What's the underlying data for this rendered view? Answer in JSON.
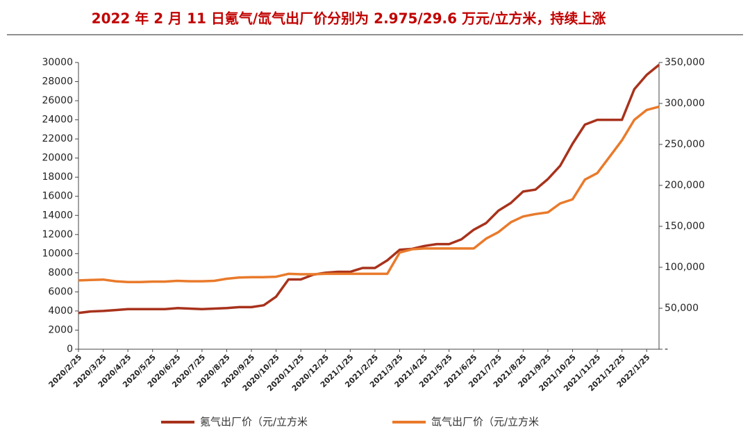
{
  "chart_data": {
    "type": "line",
    "title": "2022 年 2 月 11 日氪气/氙气出厂价分别为 2.975/29.6 万元/立方米，持续上涨",
    "categories": [
      "2020/2/25",
      null,
      "2020/3/25",
      null,
      "2020/4/25",
      null,
      "2020/5/25",
      null,
      "2020/6/25",
      null,
      "2020/7/25",
      null,
      "2020/8/25",
      null,
      "2020/9/25",
      null,
      "2020/10/25",
      null,
      "2020/11/25",
      null,
      "2020/12/25",
      null,
      "2021/1/25",
      null,
      "2021/2/25",
      null,
      "2021/3/25",
      null,
      "2021/4/25",
      null,
      "2021/5/25",
      null,
      "2021/6/25",
      null,
      "2021/7/25",
      null,
      "2021/8/25",
      null,
      "2021/9/25",
      null,
      "2021/10/25",
      null,
      "2021/11/25",
      null,
      "2021/12/25",
      null,
      "2022/1/25",
      null
    ],
    "series": [
      {
        "name": "氪气出厂价（元/立方米",
        "color": "#a8321c",
        "axis": "y",
        "values": [
          3800,
          3950,
          4000,
          4100,
          4200,
          4200,
          4200,
          4200,
          4300,
          4250,
          4200,
          4250,
          4300,
          4400,
          4400,
          4600,
          5500,
          7300,
          7300,
          7800,
          8000,
          8100,
          8100,
          8500,
          8500,
          9300,
          10400,
          10500,
          10800,
          11000,
          11000,
          11500,
          12500,
          13200,
          14500,
          15300,
          16500,
          16700,
          17800,
          19200,
          21500,
          23500,
          24000,
          24000,
          24000,
          27200,
          28700,
          29750
        ]
      },
      {
        "name": "氙气出厂价（元/立方米",
        "color": "#e97a2b",
        "axis": "y2",
        "values": [
          84000,
          84500,
          85000,
          83000,
          82000,
          82000,
          82500,
          82500,
          83500,
          83000,
          83000,
          83500,
          86000,
          87500,
          88000,
          88000,
          88500,
          92000,
          91500,
          91500,
          92000,
          92000,
          92000,
          92000,
          92000,
          92000,
          118000,
          122000,
          123000,
          123000,
          123000,
          123000,
          123000,
          135000,
          143000,
          155000,
          162000,
          165000,
          167000,
          178000,
          183000,
          207000,
          215000,
          235000,
          255000,
          280000,
          292000,
          296000
        ]
      }
    ],
    "ylim": [
      0,
      30000
    ],
    "yticks": [
      0,
      2000,
      4000,
      6000,
      8000,
      10000,
      12000,
      14000,
      16000,
      18000,
      20000,
      22000,
      24000,
      26000,
      28000,
      30000
    ],
    "y2lim": [
      0,
      350000
    ],
    "y2ticks": [
      {
        "value": 0,
        "label": "-"
      },
      {
        "value": 50000,
        "label": "50,000"
      },
      {
        "value": 100000,
        "label": "100,000"
      },
      {
        "value": 150000,
        "label": "150,000"
      },
      {
        "value": 200000,
        "label": "200,000"
      },
      {
        "value": 250000,
        "label": "250,000"
      },
      {
        "value": 300000,
        "label": "300,000"
      },
      {
        "value": 350000,
        "label": "350,000"
      }
    ],
    "grid": false,
    "legend": "bottom"
  }
}
